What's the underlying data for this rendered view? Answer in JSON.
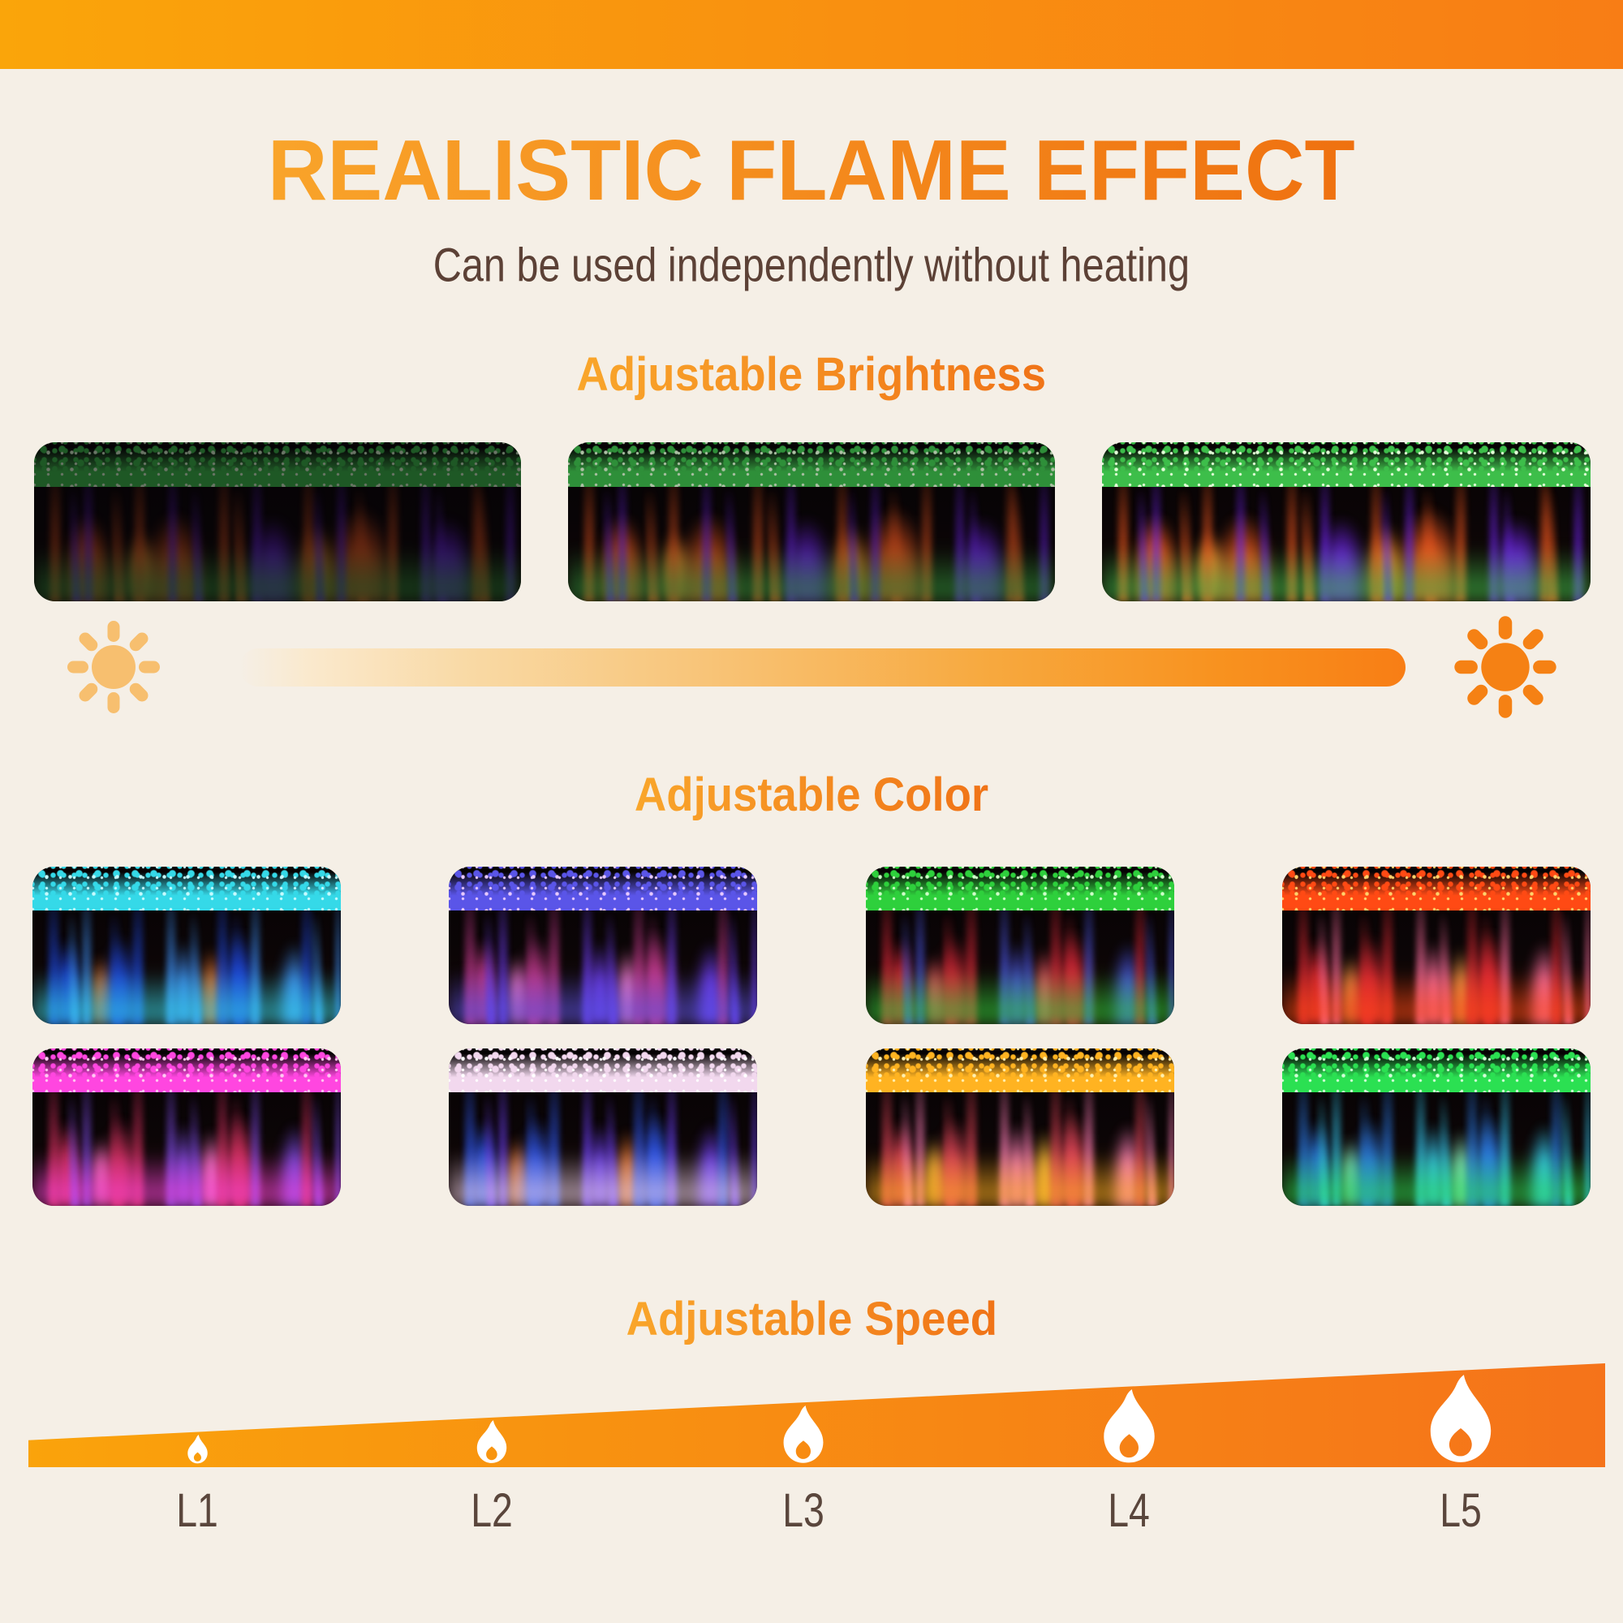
{
  "page": {
    "background": "#F5EFE6",
    "top_bar": {
      "color_left": "#FAA50A",
      "color_right": "#F87D15"
    }
  },
  "title": {
    "text": "REALISTIC FLAME EFFECT",
    "color_left": "#F9A42A",
    "color_right": "#EF7110"
  },
  "subtitle": {
    "text": "Can be used independently without heating",
    "color": "#5C4136"
  },
  "headings": {
    "accent_left": "#F9A62B",
    "accent_right": "#F07317"
  },
  "sections": {
    "brightness": {
      "heading": "Adjustable Brightness",
      "palette": {
        "flame": "#E8541E",
        "accent": "#6A22E0",
        "ember": "#FF8A2A",
        "bed": "#3DBE4A",
        "highlight": "#E4FFD9"
      },
      "tiles": [
        {
          "name": "brightness-low",
          "dim": 0.55
        },
        {
          "name": "brightness-medium",
          "dim": 0.25
        },
        {
          "name": "brightness-high",
          "dim": 0
        }
      ],
      "slider": {
        "sun_left_color": "#F7BF6F",
        "sun_right_color": "#F58114",
        "track_from": "#FAE9CD",
        "track_to": "#F87E15"
      }
    },
    "color": {
      "heading": "Adjustable Color",
      "tiles": [
        {
          "name": "color-blue-cyan",
          "flame": "#1E46D8",
          "accent": "#3C8CF0",
          "ember": "#E87630",
          "bed": "#35D9E8",
          "highlight": "#C6FBFF"
        },
        {
          "name": "color-magenta-violet",
          "flame": "#C23A8C",
          "accent": "#6A3BE8",
          "ember": "#FF7FD0",
          "bed": "#5A55E8",
          "highlight": "#E7C9FF"
        },
        {
          "name": "color-red-green",
          "flame": "#D82838",
          "accent": "#4A55E0",
          "ember": "#FF5A6A",
          "bed": "#2ED03C",
          "highlight": "#CFFFC9"
        },
        {
          "name": "color-red-orange",
          "flame": "#E02A34",
          "accent": "#FF6FA0",
          "ember": "#FF9F4A",
          "bed": "#FF4A14",
          "highlight": "#FFD36B"
        },
        {
          "name": "color-pink-magenta",
          "flame": "#D0305E",
          "accent": "#7A4AE0",
          "ember": "#FF77C8",
          "bed": "#FF46E0",
          "highlight": "#FFC9F2"
        },
        {
          "name": "color-blue-white",
          "flame": "#2E55E8",
          "accent": "#6A3DF0",
          "ember": "#E87630",
          "bed": "#F2D8EE",
          "highlight": "#FFFFFF"
        },
        {
          "name": "color-pink-gold",
          "flame": "#E04558",
          "accent": "#FF7FB8",
          "ember": "#FFBE3C",
          "bed": "#FFB321",
          "highlight": "#FFF0B0"
        },
        {
          "name": "color-blue-green",
          "flame": "#2C7CE8",
          "accent": "#35C8F0",
          "ember": "#8CF0C8",
          "bed": "#2BE052",
          "highlight": "#D2FFD8"
        }
      ]
    },
    "speed": {
      "heading": "Adjustable Speed",
      "ramp": {
        "color_left": "#FAA30B",
        "color_right": "#F5731A",
        "flame_color": "#FFFFFF",
        "label_color": "#5A463C"
      },
      "levels": [
        {
          "label": "L1"
        },
        {
          "label": "L2"
        },
        {
          "label": "L3"
        },
        {
          "label": "L4"
        },
        {
          "label": "L5"
        }
      ]
    }
  }
}
